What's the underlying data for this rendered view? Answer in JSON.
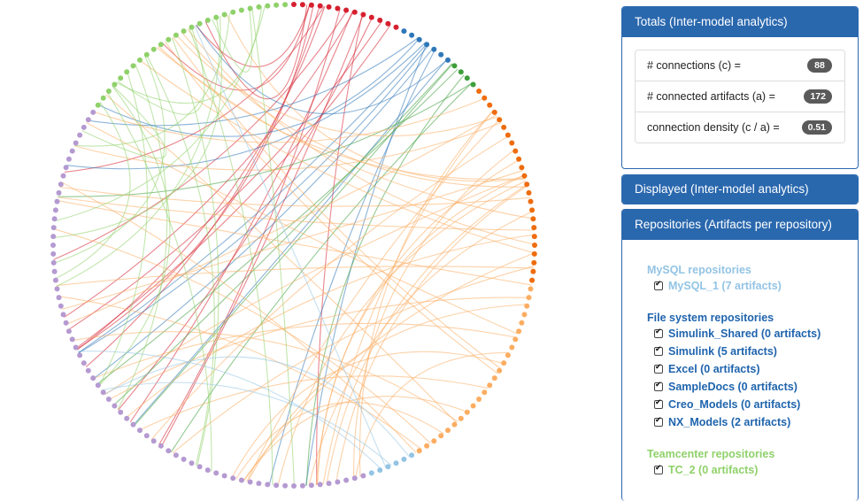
{
  "colors": {
    "mysql": "#93c4e4",
    "filesystem": "#1f64ad",
    "teamcenter": "#8fd16a",
    "red": "#d6202f",
    "blue": "#2e77b8",
    "green": "#3d9e3a",
    "orange_dark": "#ee6c0e",
    "orange_light": "#fcad62",
    "purple": "#b59ad1",
    "panel_header": "#2a68ae"
  },
  "totals": {
    "title": "Totals (Inter-model analytics)",
    "rows": [
      {
        "label": "# connections (c) =",
        "value": "88"
      },
      {
        "label": "# connected artifacts (a) =",
        "value": "172"
      },
      {
        "label": "connection density (c / a) =",
        "value": "0.51"
      }
    ]
  },
  "displayed": {
    "title": "Displayed (Inter-model analytics)"
  },
  "repositories": {
    "title": "Repositories (Artifacts per repository)",
    "mysql": {
      "title": "MySQL repositories",
      "items": [
        "MySQL_1 (7 artifacts)"
      ]
    },
    "filesystem": {
      "title": "File system repositories",
      "items": [
        "Simulink_Shared (0 artifacts)",
        "Simulink (5 artifacts)",
        "Excel (0 artifacts)",
        "SampleDocs (0 artifacts)",
        "Creo_Models (0 artifacts)",
        "NX_Models (2 artifacts)"
      ]
    },
    "teamcenter": {
      "title": "Teamcenter repositories",
      "items": [
        "TC_2 (0 artifacts)"
      ]
    }
  }
}
